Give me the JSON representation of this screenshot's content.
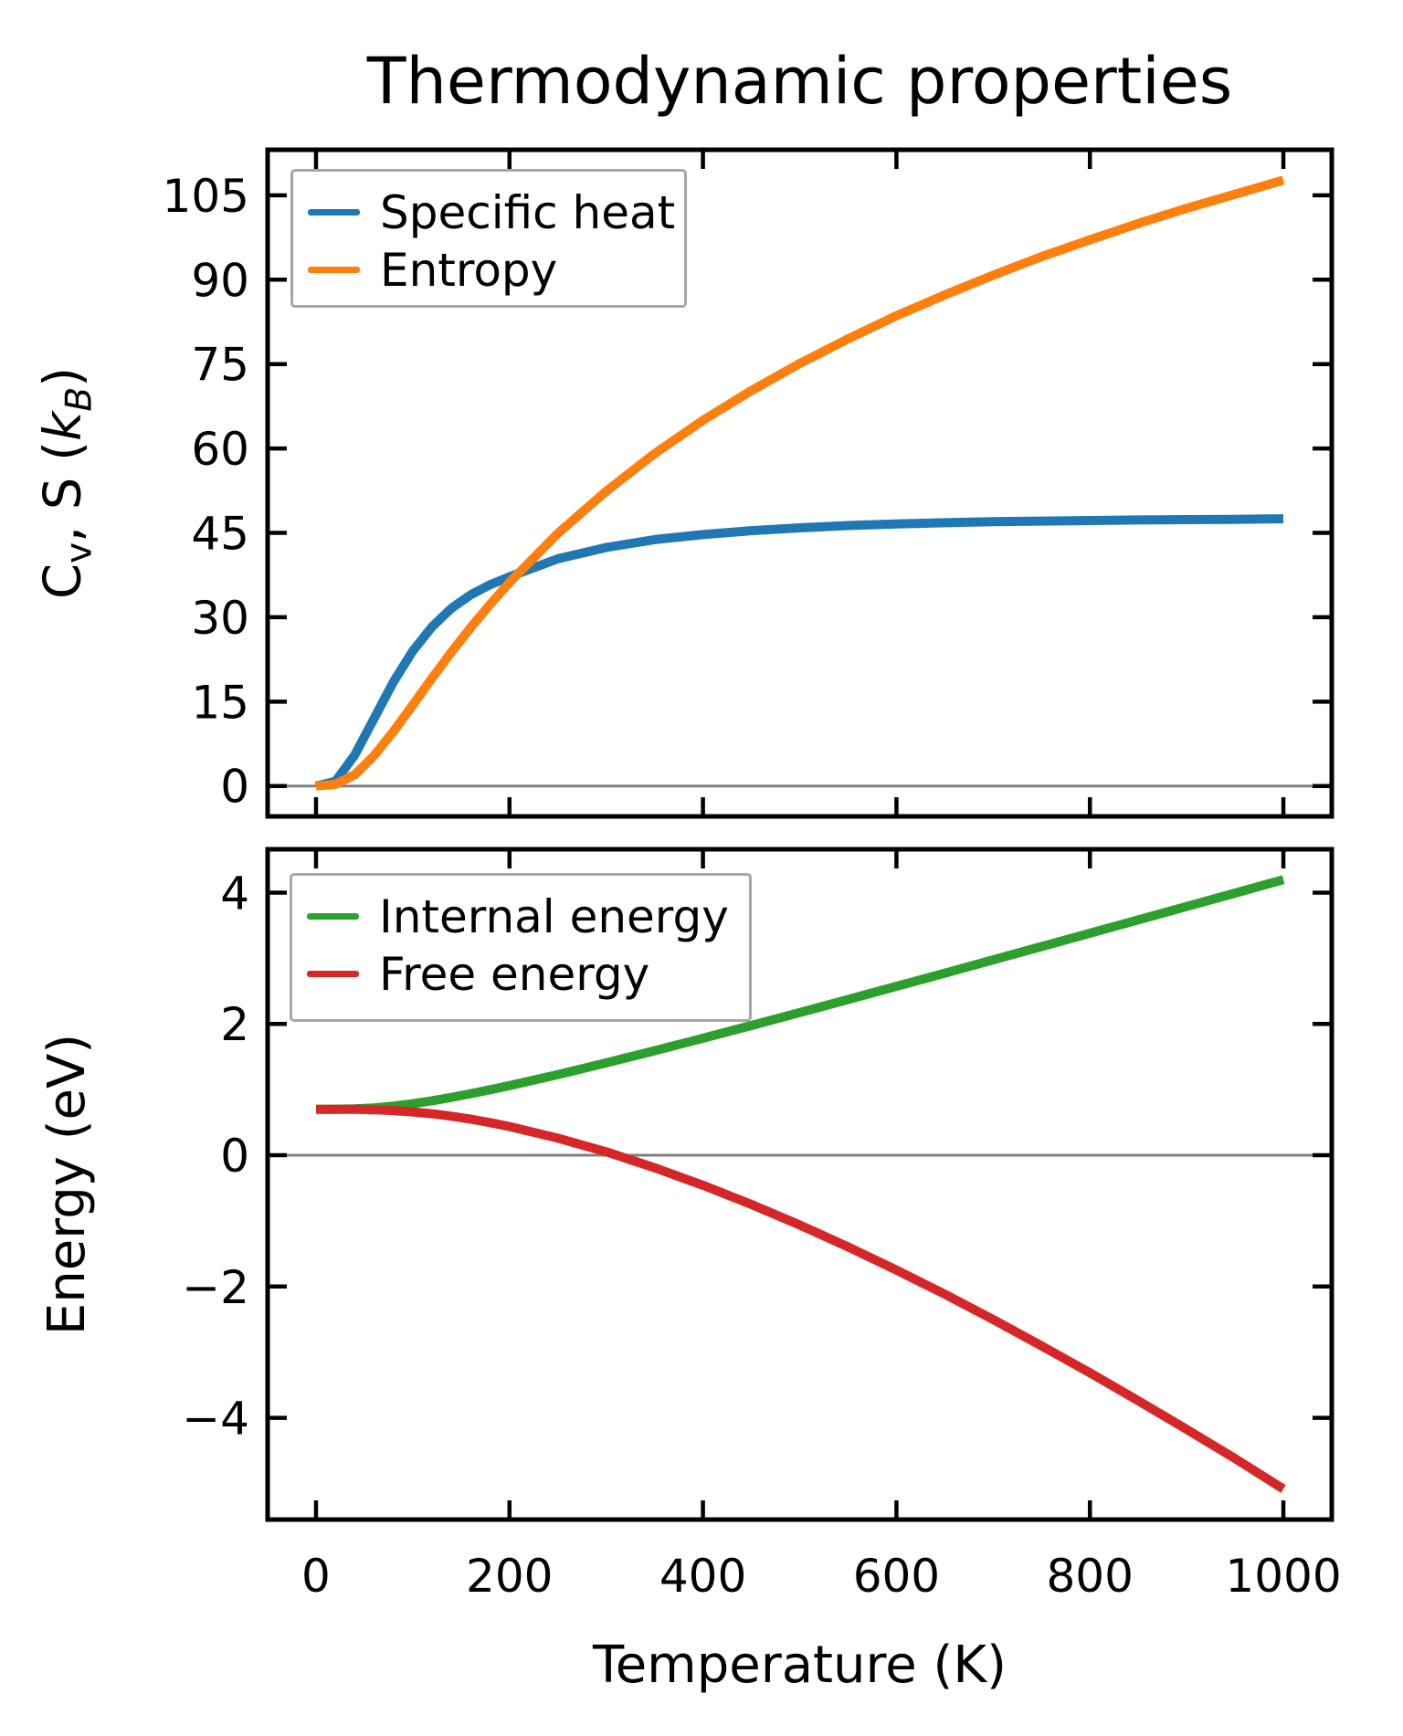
{
  "figure_title": "Thermodynamic properties",
  "colors": {
    "specific_heat": "#1f77b4",
    "entropy": "#ff7f0e",
    "internal_energy": "#2ca02c",
    "free_energy": "#d62728",
    "zero_line": "#808080",
    "axis": "#000000",
    "legend_border": "#a6a6a6"
  },
  "chart_data": [
    {
      "type": "line",
      "panel": "thermo",
      "title": "Thermodynamic properties",
      "xlabel": "",
      "ylabel": "Cv, S (kB)",
      "ylabel_parts": {
        "base1": "C",
        "sub1": "v",
        "mid": ", S (",
        "k": "k",
        "sub2": "B",
        "close": ")"
      },
      "xlim": [
        -50,
        1050
      ],
      "ylim": [
        -5.4,
        113.1
      ],
      "xticks": [
        0,
        200,
        400,
        600,
        800,
        1000
      ],
      "show_xtick_labels": false,
      "yticks": [
        0,
        15,
        30,
        45,
        60,
        75,
        90,
        105
      ],
      "grid": false,
      "zero_line_y": 0,
      "legend_position": "upper left",
      "x": [
        0,
        20,
        40,
        60,
        80,
        100,
        120,
        140,
        160,
        180,
        200,
        250,
        300,
        350,
        400,
        450,
        500,
        550,
        600,
        650,
        700,
        750,
        800,
        850,
        900,
        950,
        1000
      ],
      "series": [
        {
          "name": "Specific heat",
          "color": "#1f77b4",
          "values": [
            0,
            0.8,
            5.5,
            12,
            18.5,
            24,
            28.3,
            31.6,
            34,
            35.8,
            37.2,
            40.4,
            42.4,
            43.8,
            44.7,
            45.4,
            45.9,
            46.3,
            46.6,
            46.8,
            47,
            47.1,
            47.2,
            47.3,
            47.35,
            47.4,
            47.5
          ]
        },
        {
          "name": "Entropy",
          "color": "#ff7f0e",
          "values": [
            0,
            0.3,
            2,
            5.4,
            9.7,
            14.4,
            19.2,
            23.8,
            28.2,
            32.3,
            36.2,
            44.9,
            52.4,
            59.1,
            65,
            70.3,
            75.1,
            79.5,
            83.6,
            87.3,
            90.8,
            94.1,
            97.1,
            100,
            102.7,
            105.2,
            107.7
          ]
        }
      ]
    },
    {
      "type": "line",
      "panel": "energy",
      "title": "",
      "xlabel": "Temperature (K)",
      "ylabel": "Energy (eV)",
      "xlim": [
        -50,
        1050
      ],
      "ylim": [
        -5.55,
        4.66
      ],
      "xticks": [
        0,
        200,
        400,
        600,
        800,
        1000
      ],
      "show_xtick_labels": true,
      "yticks": [
        -4,
        -2,
        0,
        2,
        4
      ],
      "grid": false,
      "zero_line_y": 0,
      "legend_position": "upper left",
      "x": [
        0,
        20,
        40,
        60,
        80,
        100,
        120,
        140,
        160,
        180,
        200,
        250,
        300,
        350,
        400,
        450,
        500,
        550,
        600,
        650,
        700,
        750,
        800,
        850,
        900,
        950,
        1000
      ],
      "series": [
        {
          "name": "Internal energy",
          "color": "#2ca02c",
          "values": [
            0.7,
            0.701,
            0.706,
            0.721,
            0.748,
            0.784,
            0.829,
            0.881,
            0.937,
            0.998,
            1.06,
            1.228,
            1.406,
            1.592,
            1.782,
            1.976,
            2.173,
            2.372,
            2.572,
            2.773,
            2.975,
            3.178,
            3.381,
            3.585,
            3.788,
            3.993,
            4.197
          ]
        },
        {
          "name": "Free energy",
          "color": "#d62728",
          "values": [
            0.7,
            0.7,
            0.699,
            0.693,
            0.681,
            0.66,
            0.631,
            0.594,
            0.549,
            0.497,
            0.437,
            0.26,
            0.051,
            -0.191,
            -0.458,
            -0.75,
            -1.063,
            -1.396,
            -1.75,
            -2.117,
            -2.502,
            -2.904,
            -3.313,
            -3.74,
            -4.176,
            -4.619,
            -5.084
          ]
        }
      ]
    }
  ]
}
